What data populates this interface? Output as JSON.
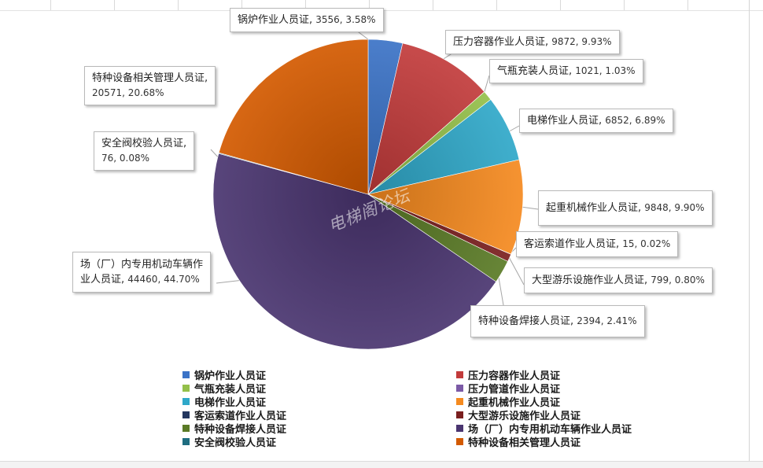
{
  "chart_data": {
    "type": "pie",
    "title": "",
    "watermark": "电梯阁论坛",
    "slices": [
      {
        "name": "锅炉作业人员证",
        "value": 3556,
        "percent": "3.58%",
        "color": "#3b73c7"
      },
      {
        "name": "压力容器作业人员证",
        "value": 9872,
        "percent": "9.93%",
        "color": "#c23b3b"
      },
      {
        "name": "气瓶充装人员证",
        "value": 1021,
        "percent": "1.03%",
        "color": "#94c04a"
      },
      {
        "name": "压力管道作业人员证",
        "value": 0,
        "percent": "",
        "color": "#7b5aa6"
      },
      {
        "name": "电梯作业人员证",
        "value": 6852,
        "percent": "6.89%",
        "color": "#2fa8c9"
      },
      {
        "name": "起重机械作业人员证",
        "value": 9848,
        "percent": "9.90%",
        "color": "#f58a1f"
      },
      {
        "name": "客运索道作业人员证",
        "value": 15,
        "percent": "0.02%",
        "color": "#23365f"
      },
      {
        "name": "大型游乐设施作业人员证",
        "value": 799,
        "percent": "0.80%",
        "color": "#7a1f1f"
      },
      {
        "name": "特种设备焊接人员证",
        "value": 2394,
        "percent": "2.41%",
        "color": "#5a7a26"
      },
      {
        "name": "场（厂）内专用机动车辆作业人员证",
        "value": 44460,
        "percent": "44.70%",
        "color": "#4a3570"
      },
      {
        "name": "安全阀校验人员证",
        "value": 76,
        "percent": "0.08%",
        "color": "#1e6d80"
      },
      {
        "name": "特种设备相关管理人员证",
        "value": 20571,
        "percent": "20.68%",
        "color": "#d35a00"
      }
    ],
    "labels": {
      "boiler": {
        "line1": "锅炉作业人员证, ",
        "num": "3556, 3.58%"
      },
      "pressure_vessel": {
        "line1": "压力容器作业人员证, ",
        "num": "9872, 9.93%"
      },
      "gas_cylinder": {
        "line1": "气瓶充装人员证, ",
        "num": "1021, 1.03%"
      },
      "elevator": {
        "line1": "电梯作业人员证, ",
        "num": "6852, 6.89%"
      },
      "crane": {
        "line1": "起重机械作业人员证, ",
        "num": "9848, 9.90%"
      },
      "ropeway": {
        "line1": "客运索道作业人员证, ",
        "num": "15, 0.02%"
      },
      "amusement": {
        "line1": "大型游乐设施作业人员证, ",
        "num": "799, 0.80%"
      },
      "welding": {
        "line1": "特种设备焊接人员证, ",
        "num": "2394, 2.41%"
      },
      "vehicle": {
        "line1": "场（厂）内专用机动车辆作",
        "line2": "业人员证, ",
        "num": "44460, 44.70%"
      },
      "safety_valve": {
        "line1": "安全阀校验人员证, ",
        "num": "76, 0.08%"
      },
      "management": {
        "line1": "特种设备相关管理人员证, ",
        "num": "20571, 20.68%"
      }
    },
    "legend": [
      "锅炉作业人员证",
      "压力容器作业人员证",
      "气瓶充装人员证",
      "压力管道作业人员证",
      "电梯作业人员证",
      "起重机械作业人员证",
      "客运索道作业人员证",
      "大型游乐设施作业人员证",
      "特种设备焊接人员证",
      "场（厂）内专用机动车辆作业人员证",
      "安全阀校验人员证",
      "特种设备相关管理人员证"
    ]
  }
}
